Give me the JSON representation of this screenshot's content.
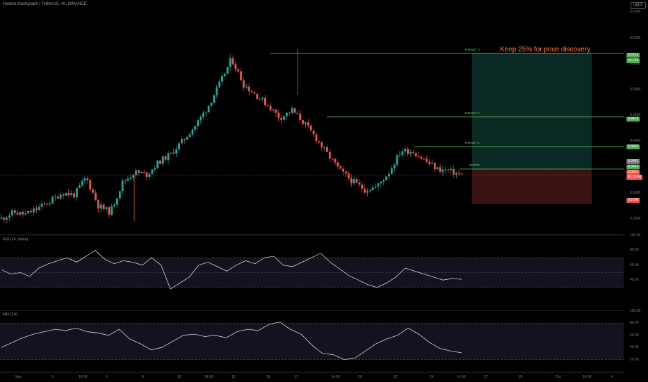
{
  "symbol_title": "Hedera Hashgraph / TetherUS, 4h, BINANCE",
  "currency_badge": "USDT",
  "annotation": "Keep 25% for price discovery",
  "colors": {
    "up": "#26a69a",
    "down": "#ef5350",
    "level_line": "#4caf50",
    "target_zone": "#0c2a25",
    "stop_zone": "#3a1414",
    "indicator_line": "#d1d4dc",
    "indicator_band": "#14121e"
  },
  "chart_data": [
    {
      "type": "candlestick",
      "pane": "price",
      "y_ticks": [
        "0.6500",
        "0.6000",
        "0.5500",
        "0.5000",
        "0.4500",
        "0.4000",
        "0.3500",
        "0.3000",
        "0.2500"
      ],
      "ylim": [
        0.22,
        0.66
      ],
      "x_ticks": [
        "Sep",
        "3",
        "14:00",
        "6",
        "8",
        "10",
        "14:00",
        "13",
        "15",
        "17",
        "14:00",
        "20",
        "22",
        "24",
        "14:00",
        "27",
        "29",
        "Oct",
        "14:00",
        "4"
      ],
      "close_path": [
        0.25,
        0.262,
        0.258,
        0.27,
        0.283,
        0.3,
        0.296,
        0.33,
        0.275,
        0.262,
        0.32,
        0.34,
        0.335,
        0.36,
        0.375,
        0.402,
        0.43,
        0.465,
        0.51,
        0.56,
        0.51,
        0.49,
        0.47,
        0.445,
        0.46,
        0.435,
        0.405,
        0.372,
        0.342,
        0.322,
        0.306,
        0.312,
        0.34,
        0.382,
        0.38,
        0.362,
        0.346,
        0.342,
        0.334
      ],
      "levels": [
        {
          "label": "TARGET 3",
          "value": 0.5703
        },
        {
          "label": "TARGET 2",
          "value": 0.4472
        },
        {
          "label": "TARGET 1",
          "value": 0.3892
        },
        {
          "label": "ENTRY",
          "value": 0.3461
        }
      ],
      "price_tags": [
        {
          "value": "0.5712",
          "color": "#4caf50"
        },
        {
          "value": "0.5703",
          "color": "#4caf50"
        },
        {
          "value": "0.4472",
          "color": "#4caf50"
        },
        {
          "value": "0.3892",
          "color": "#4caf50"
        },
        {
          "value": "0.3461",
          "color": "#787b86"
        },
        {
          "value": "0.3461",
          "color": "#4caf50"
        },
        {
          "value": "0.3343",
          "color": "#ef5350"
        },
        {
          "value": "01:32:48",
          "color": "#ef5350"
        },
        {
          "value": "0.2780",
          "color": "#ef5350"
        }
      ],
      "stop_value": 0.278
    },
    {
      "type": "line",
      "pane": "rsi",
      "title": "RSI (14, close)",
      "y_ticks": [
        "100.00",
        "80.00",
        "60.00",
        "40.00"
      ],
      "ylim": [
        0,
        100
      ],
      "bands": [
        30,
        50,
        70
      ],
      "values": [
        54,
        48,
        50,
        45,
        56,
        62,
        66,
        70,
        64,
        72,
        80,
        68,
        62,
        66,
        64,
        60,
        70,
        60,
        28,
        36,
        44,
        60,
        64,
        58,
        52,
        60,
        66,
        62,
        70,
        72,
        60,
        58,
        64,
        70,
        76,
        64,
        55,
        46,
        40,
        34,
        30,
        36,
        44,
        56,
        52,
        48,
        44,
        40,
        42,
        41
      ]
    },
    {
      "type": "line",
      "pane": "mfi",
      "title": "MFI (14)",
      "y_ticks": [
        "100.00",
        "80.00",
        "60.00",
        "40.00",
        "20.00"
      ],
      "ylim": [
        0,
        100
      ],
      "bands": [
        20,
        80
      ],
      "values": [
        40,
        48,
        56,
        62,
        66,
        70,
        68,
        72,
        66,
        64,
        60,
        70,
        54,
        46,
        36,
        40,
        50,
        60,
        62,
        58,
        60,
        56,
        66,
        70,
        68,
        78,
        82,
        70,
        62,
        44,
        30,
        28,
        20,
        22,
        34,
        46,
        54,
        60,
        72,
        62,
        48,
        38,
        34,
        31
      ]
    }
  ]
}
